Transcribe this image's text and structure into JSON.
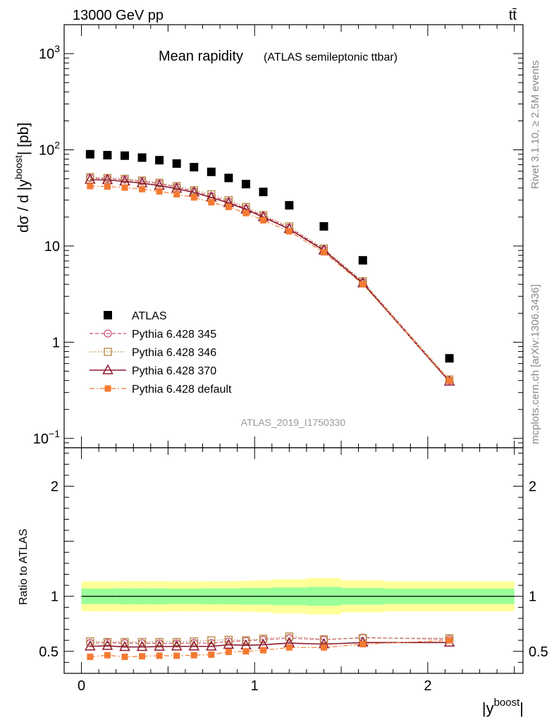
{
  "header": {
    "left": "13000 GeV pp",
    "right": "tt̄"
  },
  "side": {
    "rivet": "Rivet 3.1.10, ≥ 2.5M events",
    "mcplots": "mcplots.cern.ch [arXiv:1306.3436]"
  },
  "chart_data": [
    {
      "type": "scatter",
      "title": "Mean rapidity",
      "subtitle": "(ATLAS semileptonic ttbar)",
      "watermark": "ATLAS_2019_I1750330",
      "ylabel": "dσ / d |y^boost| [pb]",
      "ylabel_parts": {
        "main": "dσ / d |y",
        "sup": "boost",
        "end": "| [pb]"
      },
      "xlabel_parts": {
        "main": "|y",
        "sup": "boost",
        "end": "|"
      },
      "yscale": "log",
      "ylim": [
        0.08,
        2000
      ],
      "xlim": [
        -0.1,
        2.55
      ],
      "yticks": [
        {
          "v": 0.1,
          "base": "10",
          "exp": "−1"
        },
        {
          "v": 1,
          "label": "1"
        },
        {
          "v": 10,
          "label": "10"
        },
        {
          "v": 100,
          "base": "10",
          "exp": "2"
        },
        {
          "v": 1000,
          "base": "10",
          "exp": "3"
        }
      ],
      "xticks": [
        {
          "v": 0,
          "label": "0"
        },
        {
          "v": 1,
          "label": "1"
        },
        {
          "v": 2,
          "label": "2"
        }
      ],
      "x": [
        0.05,
        0.15,
        0.25,
        0.35,
        0.45,
        0.55,
        0.65,
        0.75,
        0.85,
        0.95,
        1.05,
        1.2,
        1.4,
        1.625,
        2.125
      ],
      "bin_edges": [
        0.0,
        0.1,
        0.2,
        0.3,
        0.4,
        0.5,
        0.6,
        0.7,
        0.8,
        0.9,
        1.0,
        1.1,
        1.3,
        1.5,
        1.75,
        2.5
      ],
      "legend_position": "middle-left",
      "series": [
        {
          "name": "ATLAS",
          "color": "#000000",
          "marker": "square-filled",
          "values": [
            90,
            88,
            87,
            83,
            78,
            72,
            66,
            59,
            51,
            44,
            36.5,
            26.5,
            16,
            7.1,
            0.68
          ]
        },
        {
          "name": "Pythia 6.428 345",
          "color": "#c8507a",
          "marker": "circle-open",
          "dash": "5,3",
          "values": [
            51,
            50,
            49,
            47,
            44.5,
            41,
            37,
            33,
            29,
            24.5,
            20.5,
            15.5,
            9.2,
            4.2,
            0.4
          ]
        },
        {
          "name": "Pythia 6.428 346",
          "color": "#b5843a",
          "marker": "square-open",
          "dash": "1.5,2.5",
          "values": [
            52,
            51,
            50,
            48,
            45.5,
            42,
            38,
            34.5,
            30,
            25.5,
            21,
            16,
            9.4,
            4.3,
            0.41
          ]
        },
        {
          "name": "Pythia 6.428 370",
          "color": "#8b1a2e",
          "marker": "triangle-open",
          "dash": "",
          "values": [
            49,
            48.5,
            47,
            45,
            42.5,
            39.5,
            36,
            32,
            28,
            24,
            20,
            15,
            9.0,
            4.1,
            0.39
          ]
        },
        {
          "name": "Pythia 6.428 default",
          "color": "#f47a32",
          "marker": "square-filled-small",
          "dash": "7,3,2,3",
          "values": [
            42,
            41.5,
            40.5,
            39,
            37,
            34.5,
            32,
            28.5,
            25.5,
            22,
            18.5,
            14.2,
            8.6,
            4.0,
            0.4
          ]
        }
      ]
    },
    {
      "type": "scatter",
      "ylabel": "Ratio to ATLAS",
      "ylim": [
        0.3,
        2.35
      ],
      "xlim": [
        -0.1,
        2.55
      ],
      "yticks": [
        {
          "v": 0.5,
          "label": "0.5"
        },
        {
          "v": 1,
          "label": "1"
        },
        {
          "v": 2,
          "label": "2"
        }
      ],
      "bands": {
        "yellow_half_width": [
          0.135,
          0.135,
          0.138,
          0.138,
          0.138,
          0.135,
          0.135,
          0.137,
          0.137,
          0.14,
          0.145,
          0.155,
          0.165,
          0.145,
          0.135
        ],
        "green_half_width": [
          0.07,
          0.07,
          0.072,
          0.072,
          0.072,
          0.07,
          0.07,
          0.072,
          0.072,
          0.075,
          0.075,
          0.08,
          0.085,
          0.075,
          0.07
        ],
        "yellow_color": "#ffff99",
        "green_color": "#99ff99"
      },
      "series": [
        {
          "name": "Pythia 6.428 345",
          "color": "#c8507a",
          "marker": "circle-open",
          "dash": "5,3",
          "values": [
            0.575,
            0.578,
            0.575,
            0.573,
            0.572,
            0.572,
            0.575,
            0.575,
            0.59,
            0.595,
            0.605,
            0.62,
            0.605,
            0.625,
            0.61
          ]
        },
        {
          "name": "Pythia 6.428 346",
          "color": "#b5843a",
          "marker": "square-open",
          "dash": "1.5,2.5",
          "values": [
            0.59,
            0.585,
            0.585,
            0.585,
            0.585,
            0.585,
            0.59,
            0.6,
            0.605,
            0.6,
            0.615,
            0.635,
            0.61,
            0.62,
            0.62
          ]
        },
        {
          "name": "Pythia 6.428 370",
          "color": "#8b1a2e",
          "marker": "triangle-open",
          "dash": "",
          "values": [
            0.545,
            0.55,
            0.54,
            0.54,
            0.543,
            0.545,
            0.545,
            0.545,
            0.56,
            0.555,
            0.56,
            0.575,
            0.565,
            0.58,
            0.58
          ]
        },
        {
          "name": "Pythia 6.428 default",
          "color": "#f47a32",
          "marker": "square-filled-small",
          "dash": "7,3,2,3",
          "values": [
            0.45,
            0.465,
            0.45,
            0.455,
            0.46,
            0.46,
            0.465,
            0.47,
            0.495,
            0.5,
            0.51,
            0.535,
            0.535,
            0.565,
            0.6
          ]
        }
      ]
    }
  ]
}
